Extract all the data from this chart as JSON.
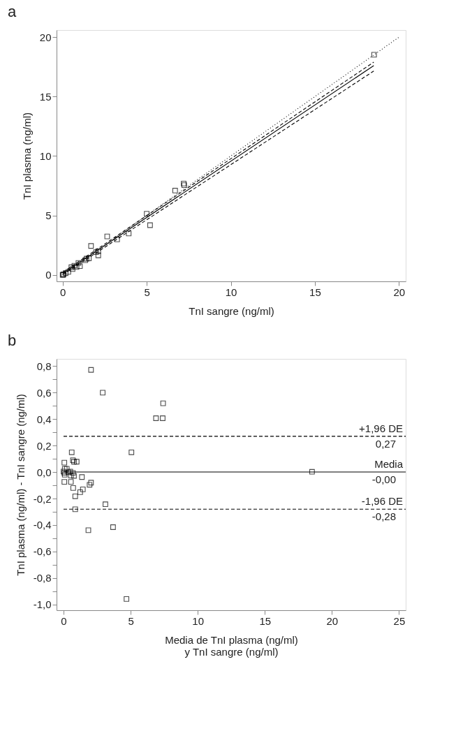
{
  "chart_data": [
    {
      "type": "scatter",
      "title": "a",
      "xlabel": "TnI sangre (ng/ml)",
      "ylabel": "TnI plasma (ng/ml)",
      "xlim": [
        -0.36,
        20.4
      ],
      "ylim": [
        -0.55,
        20.6
      ],
      "xticks": [
        0,
        5,
        10,
        15,
        20
      ],
      "yticks": [
        0,
        5,
        10,
        15,
        20
      ],
      "grid": false,
      "series": [
        {
          "type": "scatter",
          "color": "#000000",
          "marker": "square",
          "x": [
            0.0,
            0.05,
            0.03,
            0.18,
            0.34,
            0.52,
            0.59,
            0.7,
            0.83,
            0.94,
            1.03,
            1.35,
            1.42,
            1.56,
            1.69,
            1.99,
            2.12,
            2.12,
            2.65,
            3.24,
            3.93,
            5.0,
            5.2,
            6.69,
            7.2,
            7.23,
            18.52
          ],
          "values": [
            0.0,
            0.05,
            0.0,
            0.14,
            0.25,
            0.64,
            0.48,
            0.77,
            0.66,
            1.0,
            0.73,
            1.23,
            1.36,
            1.39,
            2.43,
            1.91,
            2.0,
            1.64,
            3.23,
            2.98,
            3.48,
            5.14,
            4.18,
            7.09,
            7.68,
            7.55,
            18.52
          ]
        },
        {
          "type": "line",
          "color": "#000000",
          "line_style": "solid",
          "marker": "none",
          "x": [
            0,
            18.5
          ],
          "values": [
            0.1,
            17.6
          ]
        },
        {
          "type": "line",
          "color": "#000000",
          "line_style": "dashed",
          "marker": "none",
          "x": [
            0,
            18.5
          ],
          "values": [
            0.2,
            17.9
          ]
        },
        {
          "type": "line",
          "color": "#000000",
          "line_style": "dashed",
          "marker": "none",
          "x": [
            0,
            18.5
          ],
          "values": [
            0.0,
            17.15
          ]
        },
        {
          "type": "line",
          "color": "#000000",
          "line_style": "dotted",
          "marker": "none",
          "x": [
            0,
            20
          ],
          "values": [
            0,
            20
          ]
        }
      ]
    },
    {
      "type": "scatter",
      "title": "b",
      "xlabel": "Media de TnI plasma (ng/ml)\ny TnI sangre (ng/ml)",
      "ylabel": "TnI plasma (ng/ml) - TnI sangre (ng/ml)",
      "xlim": [
        -0.52,
        25.5
      ],
      "ylim": [
        -1.043,
        0.854
      ],
      "xticks": [
        0,
        5,
        10,
        15,
        20,
        25
      ],
      "yticks": [
        {
          "value": -1.0,
          "label": "-1,0"
        },
        {
          "value": -0.9,
          "label": null
        },
        {
          "value": -0.8,
          "label": "-0,8"
        },
        {
          "value": -0.7,
          "label": null
        },
        {
          "value": -0.6,
          "label": "-0,6"
        },
        {
          "value": -0.5,
          "label": null
        },
        {
          "value": -0.4,
          "label": "-0,4"
        },
        {
          "value": -0.3,
          "label": null
        },
        {
          "value": -0.2,
          "label": "-0,2"
        },
        {
          "value": -0.1,
          "label": null
        },
        {
          "value": 0.0,
          "label": "0,0"
        },
        {
          "value": 0.1,
          "label": null
        },
        {
          "value": 0.2,
          "label": "0,2"
        },
        {
          "value": 0.3,
          "label": null
        },
        {
          "value": 0.4,
          "label": "0,4"
        },
        {
          "value": 0.5,
          "label": null
        },
        {
          "value": 0.6,
          "label": "0,6"
        },
        {
          "value": 0.7,
          "label": null
        },
        {
          "value": 0.8,
          "label": "0,8"
        }
      ],
      "grid": false,
      "series": [
        {
          "type": "scatter",
          "color": "#000000",
          "marker": "square",
          "x": [
            2.05,
            2.92,
            7.42,
            6.89,
            7.39,
            0.61,
            5.06,
            0.06,
            0.7,
            0.78,
            0.98,
            18.52,
            0.0,
            0.06,
            0.09,
            0.24,
            0.09,
            0.37,
            0.5,
            0.55,
            0.7,
            0.78,
            0.06,
            0.55,
            1.37,
            0.72,
            1.94,
            2.05,
            1.44,
            1.24,
            0.87,
            0.87,
            3.12,
            1.85,
            3.69,
            4.69
          ],
          "values": [
            0.771,
            0.599,
            0.519,
            0.406,
            0.406,
            0.149,
            0.149,
            0.071,
            0.089,
            0.078,
            0.078,
            0.002,
            0.004,
            -0.007,
            -0.02,
            0.025,
            0.025,
            -0.002,
            0.004,
            -0.027,
            -0.007,
            -0.029,
            -0.074,
            -0.074,
            -0.038,
            -0.12,
            -0.096,
            -0.08,
            -0.131,
            -0.152,
            -0.183,
            -0.281,
            -0.243,
            -0.439,
            -0.416,
            -0.958
          ]
        }
      ],
      "ref_lines": [
        {
          "axis": "y",
          "value": 0.27,
          "label": "+1,96 DE",
          "line_style": "dashed",
          "color": "#000000"
        },
        {
          "axis": "y",
          "value": 0.0,
          "label": "Media",
          "line_style": "solid",
          "color": "#000000"
        },
        {
          "axis": "y",
          "value": -0.28,
          "label": "-1,96 DE",
          "line_style": "dashed",
          "color": "#000000"
        }
      ],
      "annotations": [
        "0,27",
        "-0,00",
        "-0,28"
      ]
    }
  ]
}
